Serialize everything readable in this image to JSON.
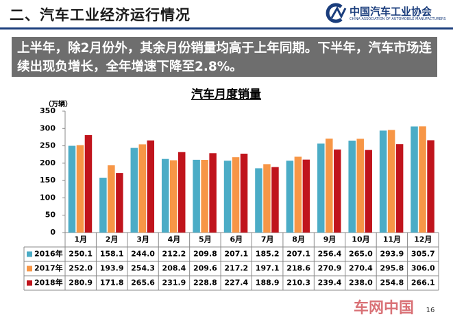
{
  "header": {
    "title": "二、汽车工业经济运行情况",
    "logo_name": "中国汽车工业协会",
    "logo_subtitle": "CHINA ASSOCIATION OF AUTOMOBILE MANUFACTURERS"
  },
  "banner": "上半年，除2月份外，其余月份销量均高于上年同期。下半年，汽车市场连续出现负增长，全年增速下降至2.8%。",
  "chart_data": {
    "type": "bar",
    "title": "汽车月度销量",
    "y_axis_label": "（万辆）",
    "categories": [
      "1月",
      "2月",
      "3月",
      "4月",
      "5月",
      "6月",
      "7月",
      "8月",
      "9月",
      "10月",
      "11月",
      "12月"
    ],
    "series": [
      {
        "name": "2016年",
        "color": "#4bacc6",
        "values": [
          250.1,
          158.1,
          244.0,
          212.2,
          209.8,
          207.1,
          185.2,
          207.1,
          256.4,
          265.0,
          293.9,
          305.7
        ],
        "value_labels": [
          "250.1",
          "158.1",
          "244.0",
          "212.2",
          "209.8",
          "207.1",
          "185.2",
          "207.1",
          "256.4",
          "265.0",
          "293.9",
          "305.7"
        ]
      },
      {
        "name": "2017年",
        "color": "#f79646",
        "values": [
          252.0,
          193.9,
          254.3,
          208.4,
          209.6,
          217.2,
          197.1,
          218.6,
          270.9,
          270.4,
          295.8,
          306.0
        ],
        "value_labels": [
          "252.0",
          "193.9",
          "254.3",
          "208.4",
          "209.6",
          "217.2",
          "197.1",
          "218.6",
          "270.9",
          "270.4",
          "295.8",
          "306.0"
        ]
      },
      {
        "name": "2018年",
        "color": "#c0141c",
        "values": [
          280.9,
          171.8,
          265.6,
          231.9,
          228.8,
          227.4,
          188.9,
          210.3,
          239.4,
          238.0,
          254.8,
          266.1
        ],
        "value_labels": [
          "280.9",
          "171.8",
          "265.6",
          "231.9",
          "228.8",
          "227.4",
          "188.9",
          "210.3",
          "239.4",
          "238.0",
          "254.8",
          "266.1"
        ]
      }
    ],
    "ylim": [
      0,
      350
    ],
    "yticks": [
      0,
      50,
      100,
      150,
      200,
      250,
      300,
      350
    ],
    "grid": false
  },
  "footer": {
    "watermark": "车网中国",
    "page_number": "16"
  }
}
